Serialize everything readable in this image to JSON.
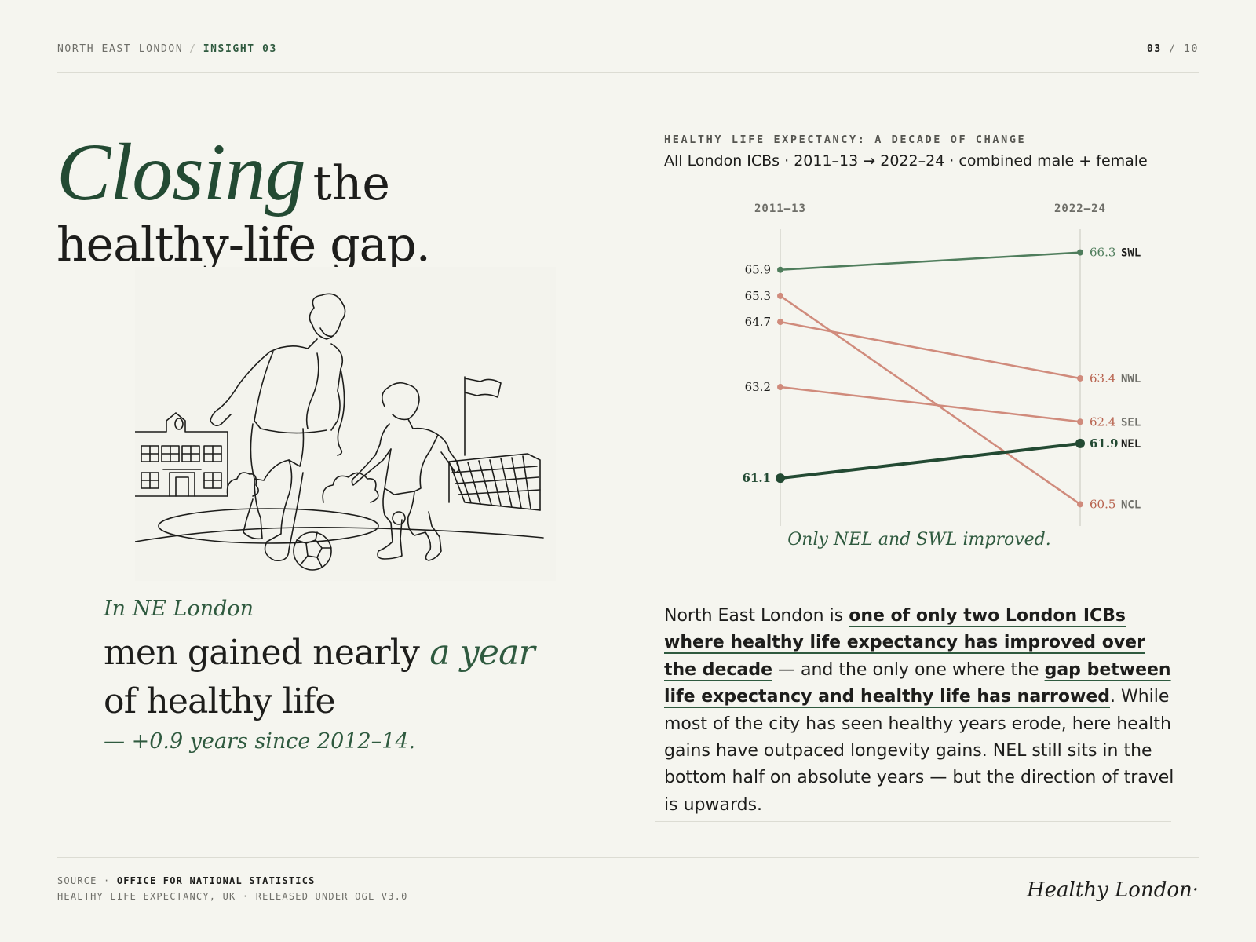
{
  "nav": {
    "section": "NORTH EAST LONDON",
    "separator": "/",
    "current": "INSIGHT 03",
    "page_current": "03",
    "page_sep": " / ",
    "page_total": "10"
  },
  "headline": {
    "word1": "Closing",
    "word2": "the",
    "line2": "healthy-life gap."
  },
  "stat": {
    "kicker": "In NE London",
    "line1_pre": "men gained nearly ",
    "line1_em": "a year",
    "line2": "of healthy life",
    "delta": "— +0.9 years since 2012–14."
  },
  "chart_data": {
    "type": "line",
    "title": "HEALTHY LIFE EXPECTANCY: A DECADE OF CHANGE",
    "subtitle": "All London ICBs · 2011–13 → 2022–24 · combined male + female",
    "x": [
      "2011–13",
      "2022–24"
    ],
    "ylim": [
      60.0,
      66.6
    ],
    "grid": false,
    "series": [
      {
        "name": "SWL",
        "values": [
          65.9,
          66.3
        ],
        "color": "#4f7d5c",
        "highlight": false
      },
      {
        "name": "NWL",
        "values": [
          64.7,
          63.4
        ],
        "color": "#d08b7c",
        "highlight": false
      },
      {
        "name": "SEL",
        "values": [
          63.2,
          62.4
        ],
        "color": "#d08b7c",
        "highlight": false
      },
      {
        "name": "NEL",
        "values": [
          61.1,
          61.9
        ],
        "color": "#234a33",
        "highlight": true
      },
      {
        "name": "NCL",
        "values": [
          65.3,
          60.5
        ],
        "color": "#d08b7c",
        "highlight": false
      }
    ],
    "annotation": "Only NEL and SWL improved."
  },
  "paragraph": {
    "t1": "North East London is ",
    "h1": "one of only two London ICBs where healthy life expectancy has improved over the decade",
    "t2": " — and the only one where the ",
    "h2": "gap between life expectancy and healthy life has narrowed",
    "t3": ". While most of the city has seen healthy years erode, here health gains have outpaced longevity gains. NEL still sits in the bottom half on absolute years — but the direction of travel is upwards."
  },
  "footer": {
    "source_label": "SOURCE · ",
    "source_name": "OFFICE FOR NATIONAL STATISTICS",
    "source_detail": "HEALTHY LIFE EXPECTANCY, UK · RELEASED UNDER OGL V3.0",
    "brand": "Healthy London·"
  },
  "colors": {
    "accent": "#234a33",
    "decline": "#d08b7c",
    "background": "#f5f5ef"
  }
}
